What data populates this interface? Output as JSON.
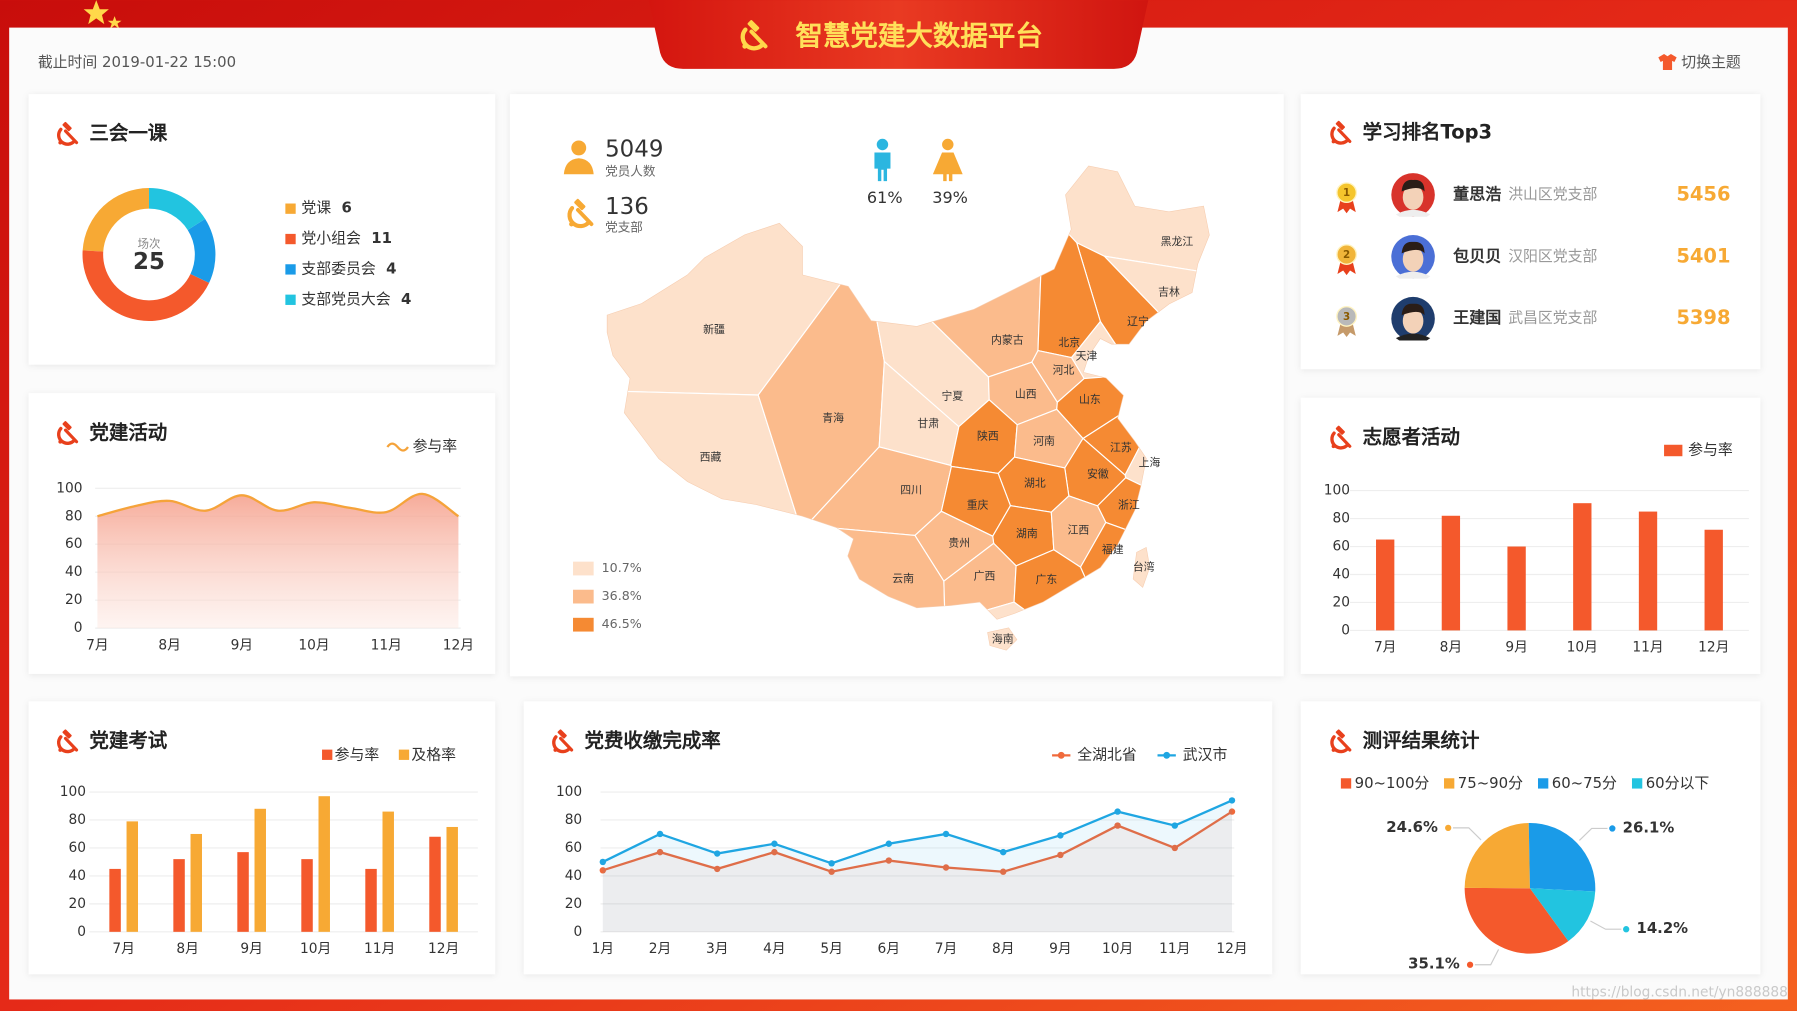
{
  "header": {
    "title": "智慧党建大数据平台",
    "timestamp": "截止时间 2019-01-22 15:00",
    "theme_button": "切换主题"
  },
  "watermark": "https://blog.csdn.net/yn888888",
  "map": {
    "stats": [
      {
        "value": 5049,
        "label": "党员人数"
      },
      {
        "value": 136,
        "label": "党支部"
      }
    ],
    "gender": {
      "values": [
        61,
        39
      ],
      "value_labels": [
        "61%",
        "39%"
      ],
      "colors": [
        "#2bb6e0",
        "#f7a934"
      ]
    },
    "legend": {
      "values": [
        10.7,
        36.8,
        46.5
      ],
      "value_labels": [
        "10.7%",
        "36.8%",
        "46.5%"
      ],
      "colors": [
        "#fde1cb",
        "#fbbb8c",
        "#f58a33"
      ]
    },
    "regions": [
      {
        "name": "新疆",
        "value": 10.7
      },
      {
        "name": "西藏",
        "value": 10.7
      },
      {
        "name": "青海",
        "value": 36.8
      },
      {
        "name": "甘肃",
        "value": 10.7
      },
      {
        "name": "宁夏",
        "value": 10.7
      },
      {
        "name": "内蒙古",
        "value": 36.8
      },
      {
        "name": "黑龙江",
        "value": 10.7
      },
      {
        "name": "吉林",
        "value": 10.7
      },
      {
        "name": "辽宁",
        "value": 46.5
      },
      {
        "name": "北京",
        "value": 46.5
      },
      {
        "name": "天津",
        "value": 10.7
      },
      {
        "name": "河北",
        "value": 36.8
      },
      {
        "name": "山西",
        "value": 36.8
      },
      {
        "name": "山东",
        "value": 46.5
      },
      {
        "name": "陕西",
        "value": 46.5
      },
      {
        "name": "河南",
        "value": 36.8
      },
      {
        "name": "江苏",
        "value": 46.5
      },
      {
        "name": "上海",
        "value": 10.7
      },
      {
        "name": "安徽",
        "value": 46.5
      },
      {
        "name": "湖北",
        "value": 46.5
      },
      {
        "name": "四川",
        "value": 36.8
      },
      {
        "name": "重庆",
        "value": 46.5
      },
      {
        "name": "浙江",
        "value": 46.5
      },
      {
        "name": "湖南",
        "value": 46.5
      },
      {
        "name": "江西",
        "value": 36.8
      },
      {
        "name": "贵州",
        "value": 36.8
      },
      {
        "name": "福建",
        "value": 46.5
      },
      {
        "name": "台湾",
        "value": 10.7
      },
      {
        "name": "云南",
        "value": 36.8
      },
      {
        "name": "广西",
        "value": 36.8
      },
      {
        "name": "广东",
        "value": 46.5
      },
      {
        "name": "海南",
        "value": 10.7
      }
    ]
  },
  "ranking": {
    "title": "学习排名Top3",
    "rows": [
      {
        "rank": 1,
        "name": "董思浩",
        "branch": "洪山区党支部",
        "score": 5456
      },
      {
        "rank": 2,
        "name": "包贝贝",
        "branch": "汉阳区党支部",
        "score": 5401
      },
      {
        "rank": 3,
        "name": "王建国",
        "branch": "武昌区党支部",
        "score": 5398
      }
    ]
  },
  "chart_data": [
    {
      "type": "donut",
      "title": "三会一课",
      "center_label": "场次",
      "total": 25,
      "categories": [
        "党课",
        "党小组会",
        "支部委员会",
        "支部党员大会"
      ],
      "values": [
        6,
        11,
        4,
        4
      ],
      "colors": [
        "#f7a934",
        "#f4592c",
        "#1a9be8",
        "#22c4e0"
      ]
    },
    {
      "type": "area",
      "title": "党建活动",
      "categories": [
        "7月",
        null,
        "8月",
        null,
        "9月",
        null,
        "10月",
        null,
        "11月",
        null,
        "12月"
      ],
      "series": [
        {
          "name": "参与率",
          "color": "#f5a33a",
          "values": [
            80,
            87,
            91,
            84,
            95,
            84,
            90,
            86,
            83,
            96,
            80
          ]
        }
      ],
      "ylim": [
        0,
        100
      ],
      "yticks": [
        0,
        20,
        40,
        60,
        80,
        100
      ],
      "grid": true
    },
    {
      "type": "bar",
      "title": "党建考试",
      "categories": [
        "7月",
        "8月",
        "9月",
        "10月",
        "11月",
        "12月"
      ],
      "series": [
        {
          "name": "参与率",
          "color": "#f4592c",
          "values": [
            45,
            52,
            57,
            52,
            45,
            68
          ]
        },
        {
          "name": "及格率",
          "color": "#f7a934",
          "values": [
            79,
            70,
            88,
            97,
            86,
            75
          ]
        }
      ],
      "ylim": [
        0,
        100
      ],
      "yticks": [
        0,
        20,
        40,
        60,
        80,
        100
      ],
      "grid": true
    },
    {
      "type": "line",
      "title": "党费收缴完成率",
      "categories": [
        "1月",
        "2月",
        "3月",
        "4月",
        "5月",
        "6月",
        "7月",
        "8月",
        "9月",
        "10月",
        "11月",
        "12月"
      ],
      "series": [
        {
          "name": "全湖北省",
          "color": "#f06a3c",
          "values": [
            44,
            57,
            45,
            57,
            43,
            51,
            46,
            43,
            55,
            76,
            60,
            86
          ]
        },
        {
          "name": "武汉市",
          "color": "#1fa6e2",
          "values": [
            50,
            70,
            56,
            63,
            49,
            63,
            70,
            57,
            69,
            86,
            76,
            94
          ]
        }
      ],
      "ylim": [
        0,
        100
      ],
      "yticks": [
        0,
        20,
        40,
        60,
        80,
        100
      ],
      "grid": true
    },
    {
      "type": "bar",
      "title": "志愿者活动",
      "categories": [
        "7月",
        "8月",
        "9月",
        "10月",
        "11月",
        "12月"
      ],
      "series": [
        {
          "name": "参与率",
          "color": "#f4592c",
          "values": [
            65,
            82,
            60,
            91,
            85,
            72
          ]
        }
      ],
      "ylim": [
        0,
        100
      ],
      "yticks": [
        0,
        20,
        40,
        60,
        80,
        100
      ],
      "grid": true
    },
    {
      "type": "pie",
      "title": "测评结果统计",
      "categories": [
        "90~100分",
        "75~90分",
        "60~75分",
        "60分以下"
      ],
      "values": [
        35.1,
        24.6,
        26.1,
        14.2
      ],
      "value_labels": [
        "35.1%",
        "24.6%",
        "26.1%",
        "14.2%"
      ],
      "colors": [
        "#f4592c",
        "#f7a934",
        "#1a9be8",
        "#22c4e0"
      ]
    }
  ]
}
